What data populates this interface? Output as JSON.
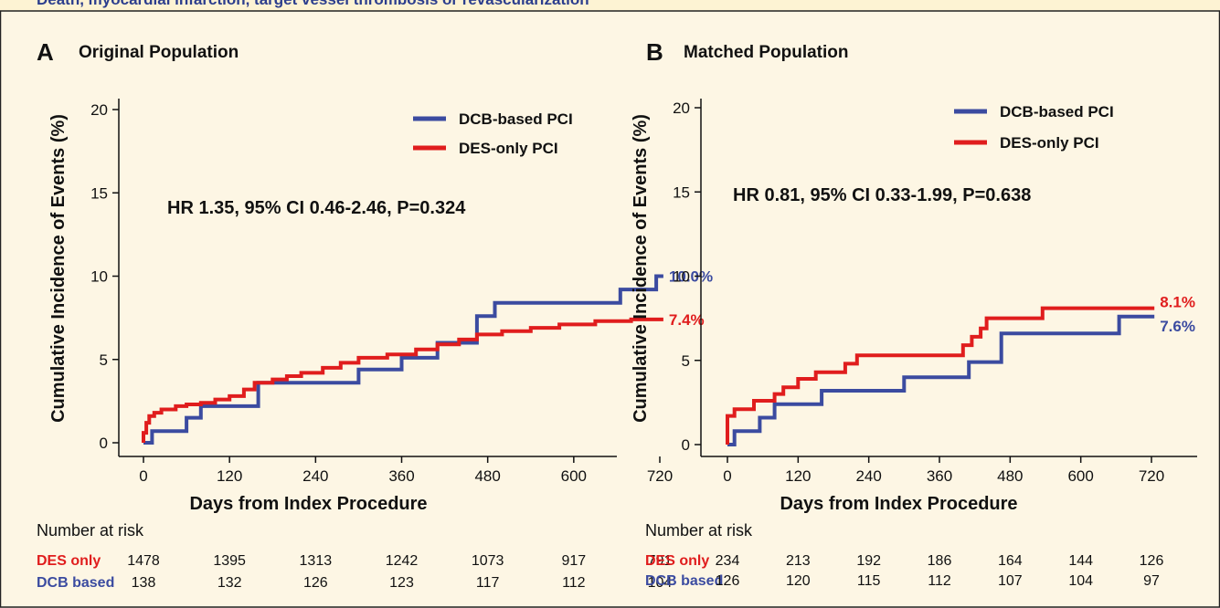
{
  "header_strip_text": "Death, myocardial infarction, target vessel thrombosis or revascularization",
  "colors": {
    "dcb": "#3b4ba0",
    "des": "#e01d1d",
    "text": "#222222",
    "background": "#fdf6e4"
  },
  "chart_data": [
    {
      "type": "line",
      "panel_letter": "A",
      "title": "Original Population",
      "xlabel": "Days from Index Procedure",
      "ylabel": "Cumulative Incidence of Events (%)",
      "xlim": [
        -15,
        790
      ],
      "ylim": [
        -1,
        21
      ],
      "xticks": [
        0,
        120,
        240,
        360,
        480,
        600,
        720
      ],
      "yticks": [
        0,
        5,
        10,
        15,
        20
      ],
      "grid": false,
      "legend_position": "top-right",
      "annotation": "HR 1.35, 95% CI 0.46-2.46, P=0.324",
      "series": [
        {
          "name": "DCB-based PCI",
          "color": "#3b4ba0",
          "step": true,
          "end_label": "10.0%",
          "points": [
            [
              0,
              0
            ],
            [
              12,
              0
            ],
            [
              12,
              0.7
            ],
            [
              60,
              0.7
            ],
            [
              60,
              1.5
            ],
            [
              80,
              1.5
            ],
            [
              80,
              2.2
            ],
            [
              160,
              2.2
            ],
            [
              160,
              3.6
            ],
            [
              300,
              3.6
            ],
            [
              300,
              4.4
            ],
            [
              360,
              4.4
            ],
            [
              360,
              5.1
            ],
            [
              410,
              5.1
            ],
            [
              410,
              6.0
            ],
            [
              465,
              6.0
            ],
            [
              465,
              7.6
            ],
            [
              490,
              7.6
            ],
            [
              490,
              8.4
            ],
            [
              665,
              8.4
            ],
            [
              665,
              9.2
            ],
            [
              715,
              9.2
            ],
            [
              715,
              10.0
            ],
            [
              725,
              10.0
            ]
          ]
        },
        {
          "name": "DES-only PCI",
          "color": "#e01d1d",
          "step": true,
          "end_label": "7.4%",
          "points": [
            [
              0,
              0
            ],
            [
              0,
              0.6
            ],
            [
              4,
              0.6
            ],
            [
              4,
              1.2
            ],
            [
              8,
              1.2
            ],
            [
              8,
              1.6
            ],
            [
              15,
              1.6
            ],
            [
              15,
              1.8
            ],
            [
              25,
              1.8
            ],
            [
              25,
              2.0
            ],
            [
              45,
              2.0
            ],
            [
              45,
              2.2
            ],
            [
              60,
              2.2
            ],
            [
              60,
              2.3
            ],
            [
              80,
              2.3
            ],
            [
              80,
              2.4
            ],
            [
              100,
              2.4
            ],
            [
              100,
              2.6
            ],
            [
              120,
              2.6
            ],
            [
              120,
              2.8
            ],
            [
              140,
              2.8
            ],
            [
              140,
              3.2
            ],
            [
              155,
              3.2
            ],
            [
              155,
              3.6
            ],
            [
              180,
              3.6
            ],
            [
              180,
              3.8
            ],
            [
              200,
              3.8
            ],
            [
              200,
              4.0
            ],
            [
              220,
              4.0
            ],
            [
              220,
              4.2
            ],
            [
              250,
              4.2
            ],
            [
              250,
              4.5
            ],
            [
              275,
              4.5
            ],
            [
              275,
              4.8
            ],
            [
              300,
              4.8
            ],
            [
              300,
              5.1
            ],
            [
              340,
              5.1
            ],
            [
              340,
              5.3
            ],
            [
              380,
              5.3
            ],
            [
              380,
              5.6
            ],
            [
              410,
              5.6
            ],
            [
              410,
              5.9
            ],
            [
              440,
              5.9
            ],
            [
              440,
              6.2
            ],
            [
              465,
              6.2
            ],
            [
              465,
              6.5
            ],
            [
              500,
              6.5
            ],
            [
              500,
              6.7
            ],
            [
              540,
              6.7
            ],
            [
              540,
              6.9
            ],
            [
              580,
              6.9
            ],
            [
              580,
              7.1
            ],
            [
              630,
              7.1
            ],
            [
              630,
              7.3
            ],
            [
              680,
              7.3
            ],
            [
              680,
              7.4
            ],
            [
              725,
              7.4
            ]
          ]
        }
      ],
      "risk_table": {
        "title": "Number at risk",
        "rows": [
          {
            "label": "DES only",
            "color": "#e01d1d",
            "values": [
              "1478",
              "1395",
              "1313",
              "1242",
              "1073",
              "917",
              "791"
            ]
          },
          {
            "label": "DCB based",
            "color": "#3b4ba0",
            "values": [
              "138",
              "132",
              "126",
              "123",
              "117",
              "112",
              "104"
            ]
          }
        ]
      }
    },
    {
      "type": "line",
      "panel_letter": "B",
      "title": "Matched Population",
      "xlabel": "Days from Index Procedure",
      "ylabel": "Cumulative Incidence of Events (%)",
      "xlim": [
        -15,
        790
      ],
      "ylim": [
        -1,
        21
      ],
      "xticks": [
        0,
        120,
        240,
        360,
        480,
        600,
        720
      ],
      "yticks": [
        0,
        5,
        10,
        15,
        20
      ],
      "grid": false,
      "legend_position": "top-right",
      "annotation": "HR 0.81, 95% CI 0.33-1.99, P=0.638",
      "series": [
        {
          "name": "DCB-based PCI",
          "color": "#3b4ba0",
          "step": true,
          "end_label": "7.6%",
          "points": [
            [
              0,
              0
            ],
            [
              12,
              0
            ],
            [
              12,
              0.8
            ],
            [
              55,
              0.8
            ],
            [
              55,
              1.6
            ],
            [
              80,
              1.6
            ],
            [
              80,
              2.4
            ],
            [
              160,
              2.4
            ],
            [
              160,
              3.2
            ],
            [
              300,
              3.2
            ],
            [
              300,
              4.0
            ],
            [
              410,
              4.0
            ],
            [
              410,
              4.9
            ],
            [
              465,
              4.9
            ],
            [
              465,
              6.6
            ],
            [
              665,
              6.6
            ],
            [
              665,
              7.6
            ],
            [
              725,
              7.6
            ]
          ]
        },
        {
          "name": "DES-only PCI",
          "color": "#e01d1d",
          "step": true,
          "end_label": "8.1%",
          "points": [
            [
              0,
              0
            ],
            [
              0,
              1.7
            ],
            [
              12,
              1.7
            ],
            [
              12,
              2.1
            ],
            [
              45,
              2.1
            ],
            [
              45,
              2.6
            ],
            [
              80,
              2.6
            ],
            [
              80,
              3.0
            ],
            [
              95,
              3.0
            ],
            [
              95,
              3.4
            ],
            [
              120,
              3.4
            ],
            [
              120,
              3.9
            ],
            [
              150,
              3.9
            ],
            [
              150,
              4.3
            ],
            [
              200,
              4.3
            ],
            [
              200,
              4.8
            ],
            [
              220,
              4.8
            ],
            [
              220,
              5.3
            ],
            [
              400,
              5.3
            ],
            [
              400,
              5.9
            ],
            [
              415,
              5.9
            ],
            [
              415,
              6.4
            ],
            [
              430,
              6.4
            ],
            [
              430,
              6.9
            ],
            [
              440,
              6.9
            ],
            [
              440,
              7.5
            ],
            [
              535,
              7.5
            ],
            [
              535,
              8.1
            ],
            [
              725,
              8.1
            ]
          ]
        }
      ],
      "risk_table": {
        "title": "Number at risk",
        "rows": [
          {
            "label": "DES only",
            "color": "#e01d1d",
            "values": [
              "234",
              "213",
              "192",
              "186",
              "164",
              "144",
              "126"
            ]
          },
          {
            "label": "DCB based",
            "color": "#3b4ba0",
            "values": [
              "126",
              "120",
              "115",
              "112",
              "107",
              "104",
              "97"
            ]
          }
        ]
      }
    }
  ]
}
